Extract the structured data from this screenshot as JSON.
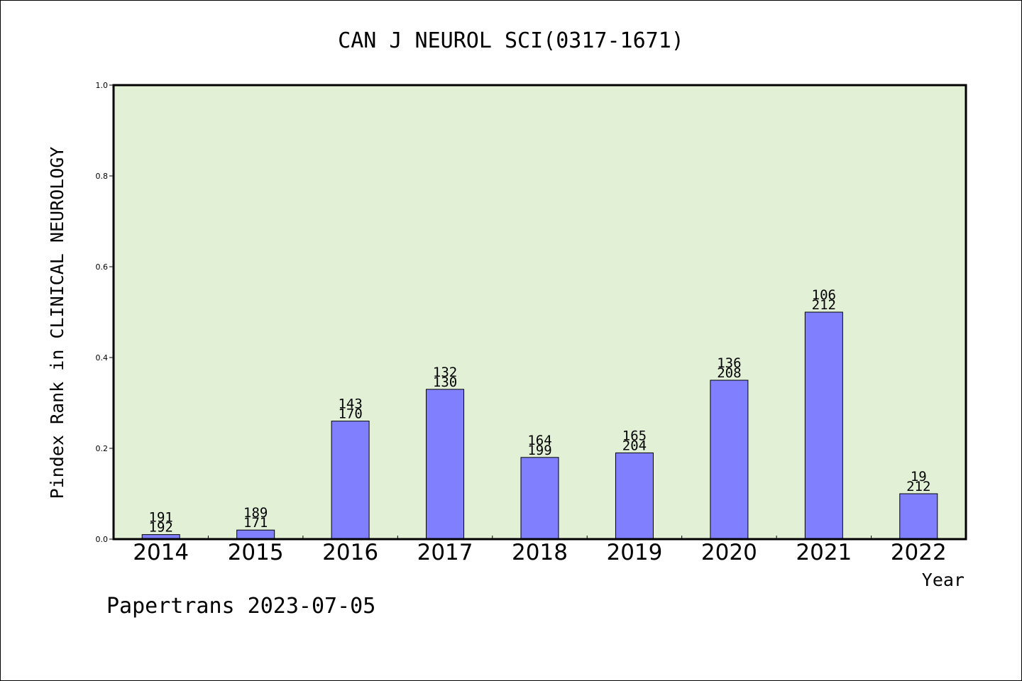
{
  "chart_data": {
    "type": "bar",
    "title": "CAN J NEUROL SCI(0317-1671)",
    "xlabel": "Year",
    "ylabel": "Pindex Rank in CLINICAL NEUROLOGY",
    "footer": "Papertrans 2023-07-05",
    "categories": [
      "2014",
      "2015",
      "2016",
      "2017",
      "2018",
      "2019",
      "2020",
      "2021",
      "2022"
    ],
    "values": [
      0.01,
      0.02,
      0.26,
      0.33,
      0.18,
      0.19,
      0.35,
      0.5,
      0.1
    ],
    "rank": [
      191,
      189,
      143,
      132,
      164,
      165,
      136,
      106,
      19
    ],
    "total": [
      192,
      171,
      170,
      130,
      199,
      204,
      208,
      212,
      212
    ],
    "ylim": [
      0,
      1.0
    ],
    "yticks": [
      "0.0",
      "0.2",
      "0.4",
      "0.6",
      "0.8",
      "1.0"
    ],
    "grid": false,
    "colors": {
      "plot_background": "#e2f0d6",
      "bar_fill": "#8080ff",
      "bar_stroke": "#000000"
    }
  }
}
